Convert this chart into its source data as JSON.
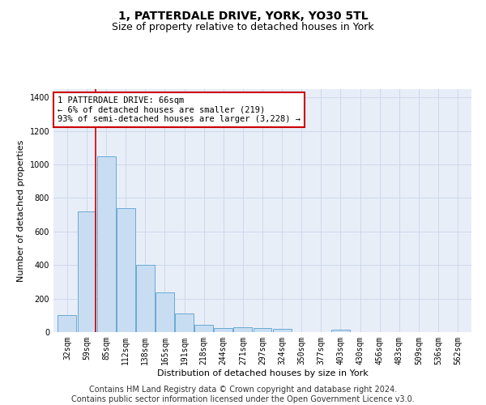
{
  "title": "1, PATTERDALE DRIVE, YORK, YO30 5TL",
  "subtitle": "Size of property relative to detached houses in York",
  "xlabel": "Distribution of detached houses by size in York",
  "ylabel": "Number of detached properties",
  "categories": [
    "32sqm",
    "59sqm",
    "85sqm",
    "112sqm",
    "138sqm",
    "165sqm",
    "191sqm",
    "218sqm",
    "244sqm",
    "271sqm",
    "297sqm",
    "324sqm",
    "350sqm",
    "377sqm",
    "403sqm",
    "430sqm",
    "456sqm",
    "483sqm",
    "509sqm",
    "536sqm",
    "562sqm"
  ],
  "values": [
    100,
    720,
    1050,
    740,
    400,
    235,
    110,
    42,
    22,
    28,
    25,
    20,
    0,
    0,
    15,
    0,
    0,
    0,
    0,
    0,
    0
  ],
  "bar_color": "#c9ddf2",
  "bar_edge_color": "#6aaad4",
  "annotation_text": "1 PATTERDALE DRIVE: 66sqm\n← 6% of detached houses are smaller (219)\n93% of semi-detached houses are larger (3,228) →",
  "annotation_box_color": "white",
  "annotation_border_color": "#cc0000",
  "vline_color": "#cc0000",
  "vline_x": 1.45,
  "ylim": [
    0,
    1450
  ],
  "yticks": [
    0,
    200,
    400,
    600,
    800,
    1000,
    1200,
    1400
  ],
  "grid_color": "#cdd8eb",
  "background_color": "#e8eef8",
  "footer_line1": "Contains HM Land Registry data © Crown copyright and database right 2024.",
  "footer_line2": "Contains public sector information licensed under the Open Government Licence v3.0.",
  "title_fontsize": 10,
  "subtitle_fontsize": 9,
  "label_fontsize": 8,
  "tick_fontsize": 7,
  "footer_fontsize": 7,
  "annot_fontsize": 7.5
}
